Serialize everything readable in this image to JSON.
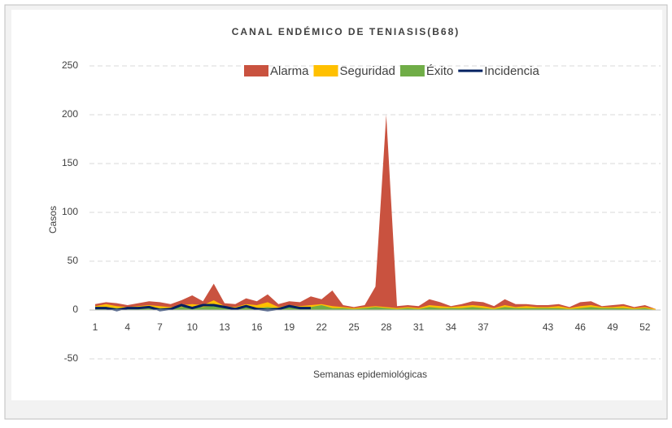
{
  "chart_data": {
    "type": "area",
    "title": "CANAL ENDÉMICO DE TENIASIS(B68)",
    "x_label": "Semanas epidemiológicas",
    "y_label": "Casos",
    "categories": [
      1,
      null,
      null,
      4,
      null,
      null,
      7,
      null,
      null,
      10,
      null,
      null,
      13,
      null,
      null,
      16,
      null,
      null,
      19,
      null,
      null,
      22,
      null,
      null,
      25,
      null,
      null,
      28,
      null,
      null,
      31,
      null,
      null,
      34,
      null,
      null,
      37,
      null,
      null,
      null,
      null,
      null,
      43,
      null,
      null,
      46,
      null,
      null,
      49,
      null,
      null,
      52,
      null
    ],
    "series": [
      {
        "name": "Alarma",
        "color": "#c9523f",
        "values": [
          6,
          8,
          7,
          5,
          7,
          9,
          8,
          6,
          10,
          15,
          9,
          27,
          7,
          6,
          12,
          9,
          16,
          6,
          9,
          8,
          14,
          11,
          20,
          5,
          3,
          5,
          24,
          200,
          4,
          5,
          4,
          11,
          8,
          4,
          6,
          9,
          8,
          4,
          11,
          6,
          6,
          5,
          5,
          6,
          3,
          8,
          9,
          4,
          5,
          6,
          3,
          5,
          1
        ]
      },
      {
        "name": "Seguridad",
        "color": "#ffc000",
        "values": [
          4,
          6,
          4,
          3,
          4,
          5,
          4,
          3,
          5,
          6,
          5,
          10,
          4,
          3,
          6,
          5,
          8,
          3,
          5,
          4,
          5,
          6,
          4,
          3,
          2,
          3,
          4,
          3,
          2,
          3,
          2,
          5,
          4,
          3,
          4,
          5,
          4,
          2,
          5,
          3,
          4,
          3,
          3,
          4,
          2,
          4,
          5,
          3,
          3,
          4,
          2,
          3,
          1
        ]
      },
      {
        "name": "Éxito",
        "color": "#70ad47",
        "values": [
          2,
          3,
          2,
          2,
          2,
          3,
          2,
          2,
          3,
          3,
          3,
          4,
          2,
          2,
          3,
          2,
          3,
          2,
          3,
          2,
          3,
          5,
          2,
          2,
          1,
          2,
          3,
          2,
          1,
          2,
          1,
          3,
          2,
          2,
          2,
          3,
          2,
          1,
          3,
          2,
          2,
          2,
          2,
          2,
          1,
          2,
          3,
          2,
          2,
          2,
          1,
          2,
          0
        ]
      },
      {
        "name": "Incidencia",
        "color": "#002060",
        "line": true,
        "values": [
          2,
          2,
          0,
          2,
          2,
          3,
          0,
          1,
          5,
          2,
          5,
          5,
          3,
          1,
          4,
          1,
          0,
          1,
          4,
          2,
          2,
          null,
          null,
          null,
          null,
          null,
          null,
          null,
          null,
          null,
          null,
          null,
          null,
          null,
          null,
          null,
          null,
          null,
          null,
          null,
          null,
          null,
          null,
          null,
          null,
          null,
          null,
          null,
          null,
          null,
          null,
          null,
          null
        ]
      }
    ],
    "ylim": [
      -50,
      250
    ],
    "yticks": [
      -50,
      0,
      50,
      100,
      150,
      200,
      250
    ],
    "grid": true,
    "legend": "top"
  }
}
